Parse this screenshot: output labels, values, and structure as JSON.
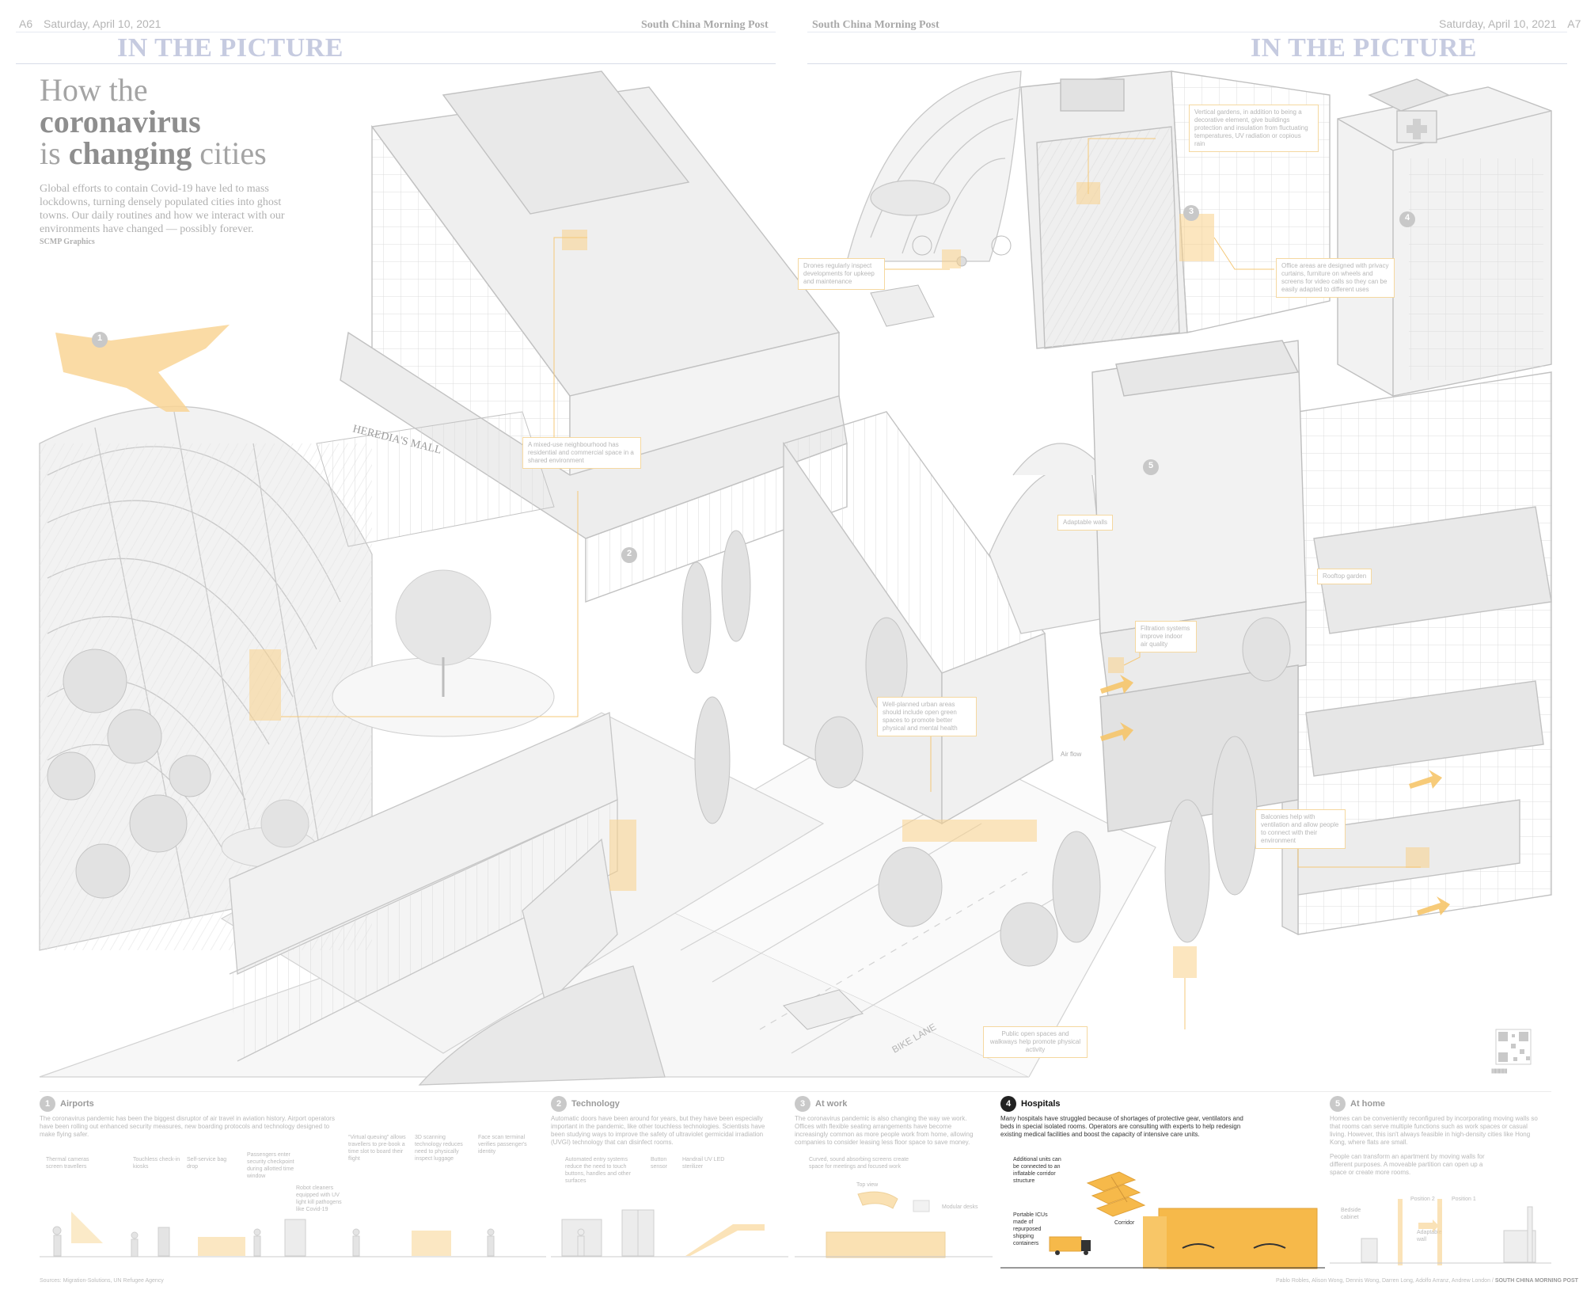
{
  "left_page": {
    "page_no": "A6",
    "date": "Saturday, April 10, 2021",
    "paper": "South China Morning Post",
    "rubric": "IN THE PICTURE"
  },
  "right_page": {
    "page_no": "A7",
    "date": "Saturday, April 10, 2021",
    "paper": "South China Morning Post",
    "rubric": "IN THE PICTURE"
  },
  "headline": {
    "line1": "How the",
    "line2": "coronavirus",
    "line3_pre": "is ",
    "line3_bold": "changing",
    "line3_post": " cities"
  },
  "intro": "Global efforts to contain Covid-19 have led to mass lockdowns, turning densely populated cities into ghost towns. Our daily routines and how we interact with our environments have changed — possibly forever.",
  "credit": "SCMP Graphics",
  "illustration": {
    "mall_sign": "HEREDIA'S MALL",
    "bike_lane": "BIKE LANE",
    "air_flow": "Air flow",
    "markers": [
      "1",
      "2",
      "3",
      "4",
      "5"
    ]
  },
  "callouts": {
    "mixed_use": "A mixed-use neighbourhood has residential and commercial space in a shared environment",
    "drones": "Drones regularly inspect developments for upkeep and maintenance",
    "vertical_gardens": "Vertical gardens, in addition to being a decorative element, give buildings protection and insulation from fluctuating temperatures, UV radiation or copious rain",
    "office_areas": "Office areas are designed with privacy curtains, furniture on wheels and screens for video calls so they can be easily adapted to different uses",
    "adaptable_walls": "Adaptable walls",
    "rooftop_garden": "Rooftop garden",
    "filtration": "Filtration systems improve indoor air quality",
    "urban_areas": "Well-planned urban areas should include open green spaces to promote better physical and mental health",
    "balconies": "Balconies help with ventilation and allow people to connect with their environment",
    "public_open": "Public open spaces and walkways help promote physical activity"
  },
  "panels": {
    "airports": {
      "num": "1",
      "title": "Airports",
      "text": "The coronavirus pandemic has been the biggest disruptor of air travel in aviation history. Airport operators have been rolling out enhanced security measures, new boarding protocols and technology designed to make flying safer.",
      "labels": [
        "Thermal cameras screen travellers",
        "Touchless check-in kiosks",
        "Self-service bag drop",
        "Passengers enter security checkpoint during allotted time window",
        "“Virtual queuing” allows travellers to pre-book a time slot to board their flight",
        "3D scanning technology reduces need to physically inspect luggage",
        "Face scan terminal verifies passenger's identity",
        "Robot cleaners equipped with UV light kill pathogens like Covid-19"
      ]
    },
    "technology": {
      "num": "2",
      "title": "Technology",
      "text": "Automatic doors have been around for years, but they have been especially important in the pandemic, like other touchless technologies. Scientists have been studying ways to improve the safety of ultraviolet germicidal irradiation (UVGI) technology that can disinfect rooms.",
      "labels": [
        "Automated entry systems reduce the need to touch buttons, handles and other surfaces",
        "Button sensor",
        "Handrail UV LED sterilizer"
      ]
    },
    "at_work": {
      "num": "3",
      "title": "At work",
      "text": "The coronavirus pandemic is also changing the way we work. Offices with flexible seating arrangements have become increasingly common as more people work from home, allowing companies to consider leasing less floor space to save money.",
      "labels": [
        "Curved, sound absorbing screens create space for meetings and focused work",
        "Top view",
        "Modular desks"
      ]
    },
    "hospitals": {
      "num": "4",
      "title": "Hospitals",
      "text": "Many hospitals have struggled because of shortages of protective gear, ventilators and beds in special isolated rooms. Operators are consulting with experts to help redesign existing medical facilities and boost the capacity of intensive care units.",
      "labels": [
        "Additional units can be connected to an inflatable corridor structure",
        "Portable ICUs made of repurposed shipping containers",
        "Corridor"
      ]
    },
    "at_home": {
      "num": "5",
      "title": "At home",
      "text": "Homes can be conveniently reconfigured by incorporating moving walls so that rooms can serve multiple functions such as work spaces or casual living. However, this isn't always feasible in high-density cities like Hong Kong, where flats are small.",
      "text2": "People can transform an apartment by moving walls for different purposes. A moveable partition can open up a space or create more rooms.",
      "labels": [
        "Position 2",
        "Position 1",
        "Bedside cabinet",
        "Adaptable wall"
      ]
    }
  },
  "footer": {
    "sources": "Sources: Migration-Solutions, UN Refugee Agency",
    "byline": "Pablo Robles, Alison Wong, Dennis Wong, Darren Long, Adolfo Arranz, Andrew London / ",
    "byline_paper": "SOUTH CHINA MORNING POST",
    "qr_caption": "|||||||||||||||||||||||||||||||||||"
  },
  "colors": {
    "accent_orange": "#f6b94a",
    "rubric_blue": "#c6cbe0",
    "sketch_grey": "#cfcfcf"
  }
}
